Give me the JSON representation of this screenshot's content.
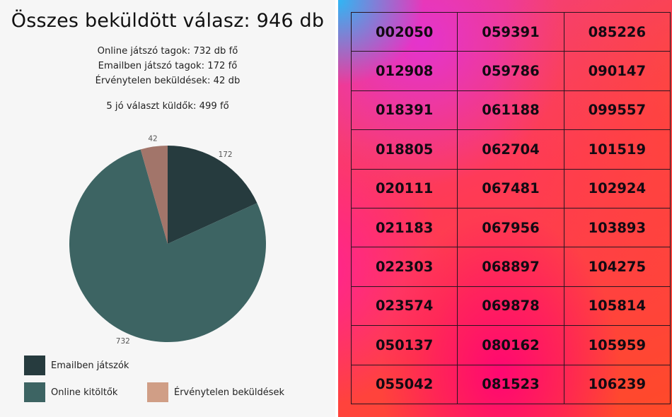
{
  "left_panel": {
    "title": "Összes beküldött válasz: 946 db",
    "stats": [
      "Online játszó tagok: 732 db fő",
      "Emailben játszó tagok: 172 fő",
      "Érvénytelen beküldések: 42 db"
    ],
    "correct_senders": "5 jó választ küldők: 499 fő"
  },
  "chart_data": {
    "type": "pie",
    "slices": [
      {
        "label": "Emailben játszók",
        "value": 172,
        "color": "#263b3e"
      },
      {
        "label": "Online kitöltők",
        "value": 732,
        "color": "#3d6463"
      },
      {
        "label": "Érvénytelen beküldések",
        "value": 42,
        "color": "#a2756a"
      }
    ],
    "data_labels": [
      "172",
      "732",
      "42"
    ],
    "legend": {
      "placement": "bottom",
      "entries": [
        {
          "label": "Emailben játszók",
          "color": "#263b3e"
        },
        {
          "label": "Online kitöltők",
          "color": "#3d6463"
        },
        {
          "label": "Érvénytelen beküldések",
          "color": "#d09e86"
        }
      ]
    }
  },
  "code_table": {
    "rows": [
      [
        "002050",
        "059391",
        "085226"
      ],
      [
        "012908",
        "059786",
        "090147"
      ],
      [
        "018391",
        "061188",
        "099557"
      ],
      [
        "018805",
        "062704",
        "101519"
      ],
      [
        "020111",
        "067481",
        "102924"
      ],
      [
        "021183",
        "067956",
        "103893"
      ],
      [
        "022303",
        "068897",
        "104275"
      ],
      [
        "023574",
        "069878",
        "105814"
      ],
      [
        "050137",
        "080162",
        "105959"
      ],
      [
        "055042",
        "081523",
        "106239"
      ]
    ]
  }
}
